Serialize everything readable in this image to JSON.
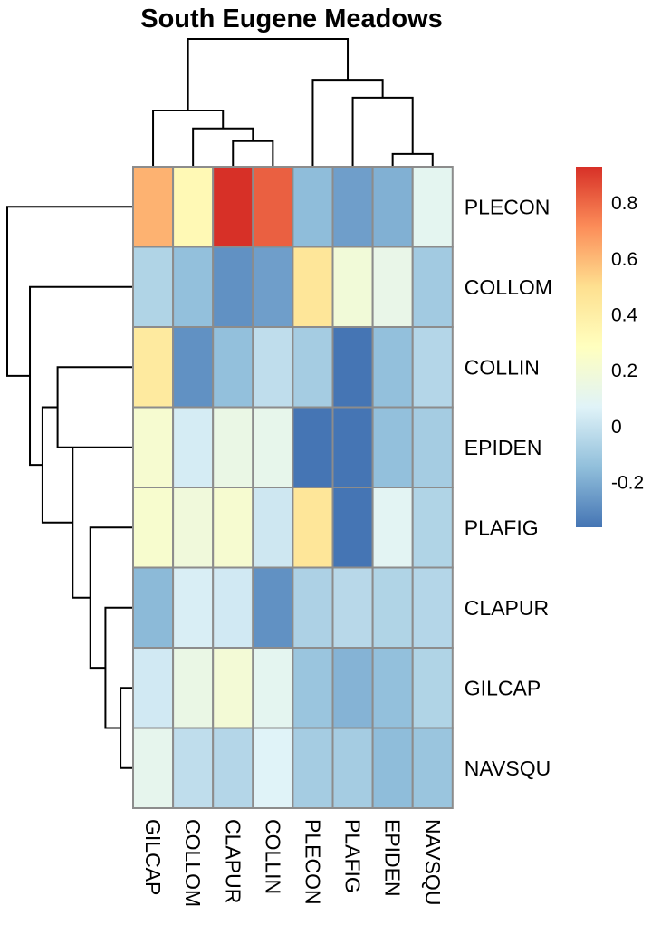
{
  "chart_data": {
    "type": "heatmap",
    "title": "South Eugene Meadows",
    "rows": [
      "PLECON",
      "COLLOM",
      "COLLIN",
      "EPIDEN",
      "PLAFIG",
      "CLAPUR",
      "GILCAP",
      "NAVSQU"
    ],
    "columns": [
      "GILCAP",
      "COLLOM",
      "CLAPUR",
      "COLLIN",
      "PLECON",
      "PLAFIG",
      "EPIDEN",
      "NAVSQU"
    ],
    "values": [
      [
        0.62,
        0.33,
        0.93,
        0.82,
        -0.15,
        -0.24,
        -0.19,
        0.1
      ],
      [
        -0.06,
        -0.14,
        -0.28,
        -0.24,
        0.46,
        0.19,
        0.13,
        -0.1
      ],
      [
        0.43,
        -0.28,
        -0.14,
        -0.02,
        -0.09,
        -0.36,
        -0.14,
        -0.05
      ],
      [
        0.22,
        0.04,
        0.14,
        0.12,
        -0.36,
        -0.36,
        -0.14,
        -0.09
      ],
      [
        0.23,
        0.18,
        0.22,
        0.02,
        0.46,
        -0.36,
        0.09,
        -0.06
      ],
      [
        -0.16,
        0.05,
        0.03,
        -0.28,
        -0.07,
        -0.04,
        -0.06,
        -0.05
      ],
      [
        0.03,
        0.14,
        0.2,
        0.1,
        -0.12,
        -0.18,
        -0.14,
        -0.06
      ],
      [
        0.11,
        -0.02,
        -0.05,
        0.07,
        -0.09,
        -0.09,
        -0.15,
        -0.12
      ]
    ],
    "color_scale": {
      "min": -0.36,
      "max": 0.93,
      "ticks": [
        0.8,
        0.6,
        0.4,
        0.2,
        0,
        -0.2
      ],
      "tick_labels": [
        "0.8",
        "0.6",
        "0.4",
        "0.2",
        "0",
        "-0.2"
      ],
      "colors": [
        "#4575b4",
        "#91bfdb",
        "#e0f3f8",
        "#ffffbf",
        "#fee090",
        "#fc8d59",
        "#d73027"
      ],
      "legend_position": "right"
    },
    "row_dendrogram": {
      "merges": [
        [
          7,
          8,
          0.1
        ],
        [
          6,
          101,
          0.22
        ],
        [
          5,
          102,
          0.34
        ],
        [
          4,
          103,
          0.48
        ],
        [
          3,
          4,
          0.6
        ],
        [
          105,
          104,
          0.72
        ],
        [
          2,
          106,
          0.82
        ],
        [
          1,
          107,
          1.0
        ]
      ]
    },
    "column_dendrogram": {
      "merges": [
        [
          7,
          8,
          0.1
        ],
        [
          3,
          4,
          0.2
        ],
        [
          2,
          102,
          0.3
        ],
        [
          1,
          103,
          0.44
        ],
        [
          6,
          101,
          0.54
        ],
        [
          5,
          105,
          0.68
        ],
        [
          104,
          106,
          1.0
        ]
      ]
    }
  }
}
